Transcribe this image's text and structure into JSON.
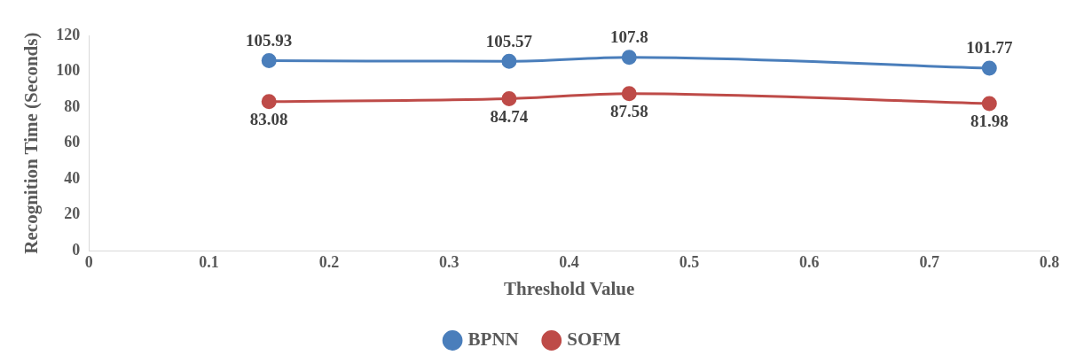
{
  "chart_data": {
    "type": "line",
    "xlabel": "Threshold Value",
    "ylabel": "Recognition Time (Seconds)",
    "x": [
      0.15,
      0.35,
      0.45,
      0.75
    ],
    "series": [
      {
        "name": "BPNN",
        "color": "#4a7ebb",
        "values": [
          105.93,
          105.57,
          107.8,
          101.77
        ]
      },
      {
        "name": "SOFM",
        "color": "#be4b48",
        "values": [
          83.08,
          84.74,
          87.58,
          81.98
        ]
      }
    ],
    "xlim": [
      0,
      0.8
    ],
    "xticks": [
      0,
      0.1,
      0.2,
      0.3,
      0.4,
      0.5,
      0.6,
      0.7,
      0.8
    ],
    "ylim": [
      0,
      120
    ],
    "yticks": [
      0,
      20,
      40,
      60,
      80,
      100,
      120
    ],
    "grid": false,
    "legend": "bottom",
    "marker": "circle",
    "line_style": "solid",
    "data_labels": true
  }
}
